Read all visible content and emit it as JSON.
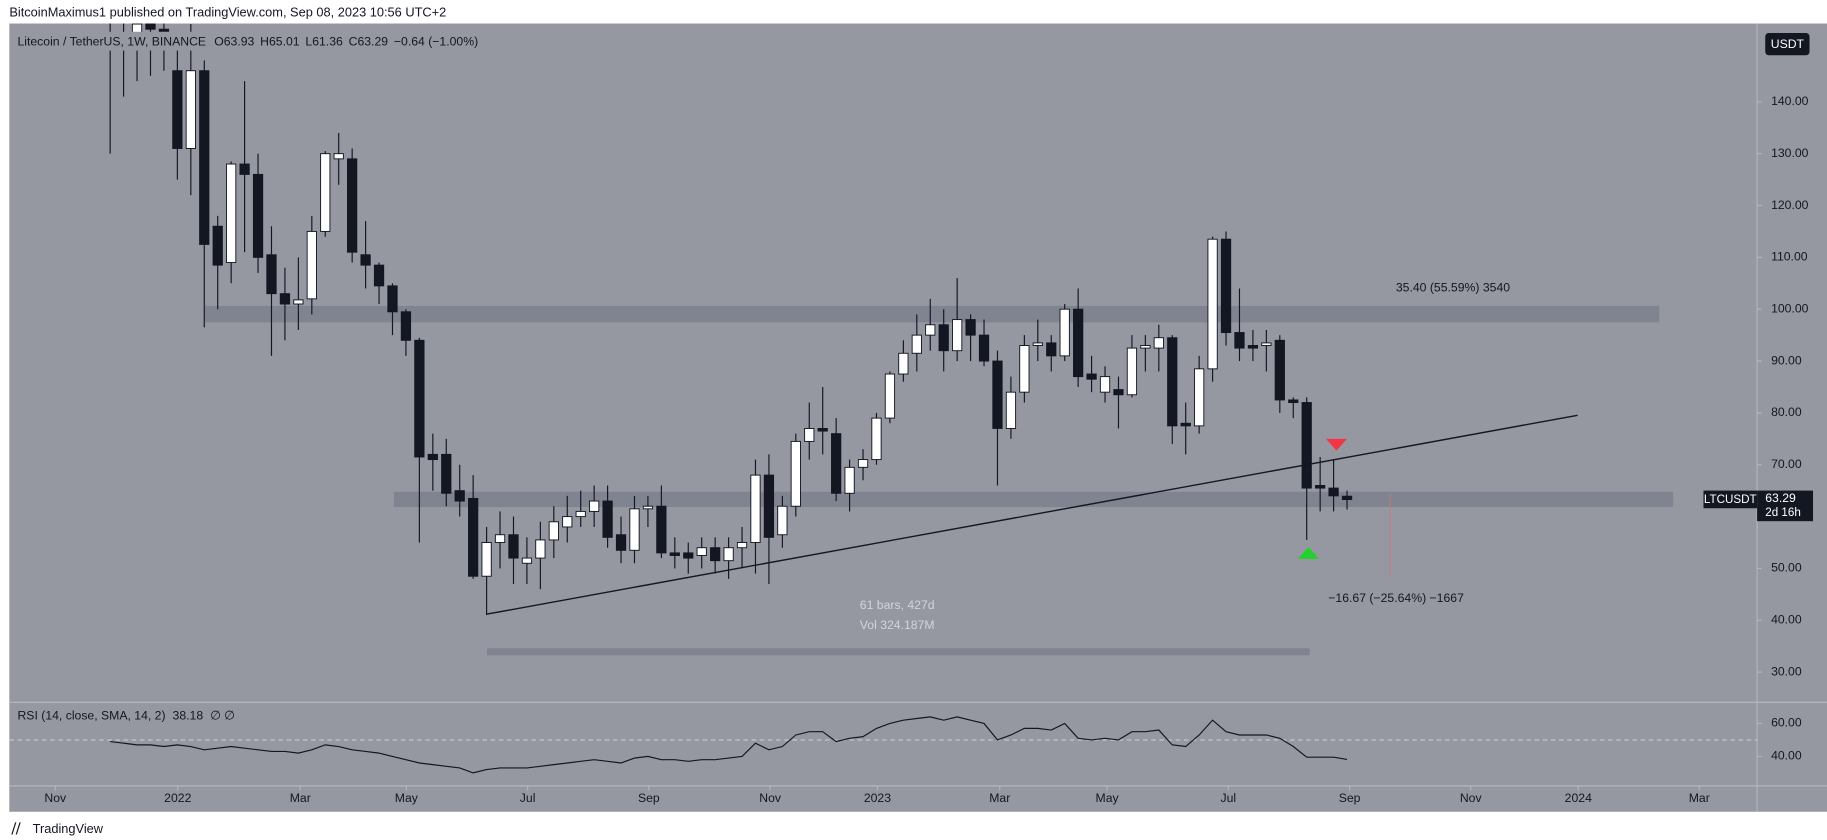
{
  "header": {
    "publisher": "BitcoinMaximus1 published on TradingView.com, Sep 08, 2023 10:56 UTC+2",
    "footer": "TradingView"
  },
  "chart_data": [
    {
      "type": "candlestick",
      "title": "Litecoin / TetherUS, 1W, BINANCE",
      "ohlc_legend": [
        {
          "key": "O",
          "value": "63.93"
        },
        {
          "key": "H",
          "value": "65.01"
        },
        {
          "key": "L",
          "value": "61.36"
        },
        {
          "key": "C",
          "value": "63.29"
        }
      ],
      "change": "−0.64 (−1.00%)",
      "currency": "USDT",
      "symbol": "LTCUSDT",
      "last_price": "63.29",
      "countdown": "2d 16h",
      "annotations": [
        "35.40 (55.59%) 3540",
        "−16.67 (−25.64%) −1667",
        "61 bars, 427d",
        "Vol 324.187M"
      ],
      "up_color": "#ffffff",
      "down_color": "#131722",
      "categories": [
        null,
        null,
        null,
        null,
        null,
        null,
        null,
        null,
        null,
        null,
        null,
        null,
        null,
        null,
        null,
        null,
        null,
        null,
        null,
        null,
        null,
        null,
        null,
        null,
        null,
        null,
        null,
        null,
        null,
        null,
        null,
        null,
        null,
        null,
        null,
        null,
        null,
        null,
        null,
        null,
        null,
        null,
        null,
        null,
        null,
        null,
        null,
        null,
        null,
        null,
        null,
        null,
        null,
        null,
        null,
        null,
        null,
        null,
        null,
        null,
        null,
        null,
        null,
        null,
        null,
        null,
        null,
        null,
        null,
        null,
        null,
        null,
        null,
        null,
        null,
        null,
        null,
        null,
        null,
        null,
        null,
        null,
        null,
        null,
        null,
        null,
        null,
        null,
        null,
        null,
        null,
        null,
        null
      ],
      "open": [
        165,
        158,
        152,
        156,
        154,
        146,
        131,
        146,
        116,
        109,
        128,
        126,
        110.5,
        103,
        101,
        102,
        115,
        129,
        129,
        110.5,
        108.5,
        104.5,
        99.5,
        94,
        72,
        72,
        65,
        63.5,
        48.5,
        55,
        56.5,
        51,
        52,
        55.5,
        58,
        60,
        61,
        63,
        56.5,
        53.5,
        61.5,
        62,
        53,
        53,
        52.5,
        54,
        51.5,
        54,
        55,
        68,
        56.5,
        62,
        74.5,
        77,
        76,
        64.5,
        69.5,
        71,
        79,
        87.5,
        91.5,
        95,
        97,
        92,
        98,
        95,
        90,
        77,
        84,
        93,
        93.5,
        91,
        100,
        87.5,
        84,
        84.5,
        83.5,
        92.5,
        92.5,
        94.5,
        78,
        77.5,
        88.5,
        113.5,
        95.5,
        93,
        93,
        94,
        82.5,
        82,
        66,
        65.5,
        63.93
      ],
      "high": [
        180,
        170,
        165,
        162,
        160,
        150,
        155,
        148,
        118,
        128.5,
        144,
        130,
        116,
        108,
        110,
        118,
        130.5,
        134,
        131,
        117,
        109,
        105,
        100,
        94.5,
        76,
        75,
        70,
        68,
        58,
        61,
        60,
        56,
        59,
        62,
        64,
        65,
        66,
        66,
        60,
        64,
        64,
        66,
        56,
        55,
        56,
        56,
        56,
        58,
        71,
        72,
        64,
        76,
        82,
        85,
        79,
        71,
        73,
        80,
        88,
        94,
        99,
        102,
        100,
        106,
        99,
        98,
        92,
        87,
        95,
        98,
        95,
        101,
        104,
        91,
        89,
        87,
        95,
        95,
        97,
        95,
        82,
        91,
        114,
        115,
        104,
        96,
        96,
        95,
        83,
        83,
        71.5,
        71,
        65.01
      ],
      "low": [
        130,
        141,
        144,
        145,
        146,
        125,
        122,
        96.5,
        100,
        105,
        111,
        107,
        91,
        94,
        96,
        99,
        114,
        124,
        109,
        104,
        101,
        95,
        91,
        55,
        65,
        62,
        60,
        48,
        41,
        50,
        47,
        47,
        46,
        52,
        55,
        58,
        58,
        54,
        51,
        51,
        58,
        52,
        50,
        49,
        50,
        49,
        48,
        50,
        49,
        47,
        54,
        60,
        71,
        72,
        63,
        61,
        67,
        70,
        78,
        86,
        88,
        92,
        88,
        90,
        90,
        89,
        66,
        75,
        82,
        90,
        88,
        90,
        85,
        84,
        82,
        77,
        83,
        88,
        88,
        74,
        72,
        76,
        86,
        93,
        90,
        90,
        88,
        80,
        79,
        55.5,
        61,
        61,
        61.36
      ],
      "close": [
        158,
        160,
        155,
        154,
        152,
        131,
        146,
        112.5,
        108.5,
        128,
        126,
        110,
        103,
        101,
        101.8,
        115,
        130,
        130,
        111,
        108.5,
        104.5,
        99.5,
        94,
        71.5,
        71,
        64.5,
        63,
        48.5,
        55,
        56.5,
        52,
        52,
        55.5,
        59,
        60,
        61,
        63,
        56,
        53.5,
        61.5,
        62,
        53,
        52.5,
        52,
        54,
        51.5,
        54,
        55,
        68,
        56,
        62,
        74.5,
        77,
        76.5,
        64.5,
        69.5,
        71,
        79,
        87.5,
        91.5,
        95,
        97,
        92,
        98,
        95,
        90,
        77,
        84,
        93,
        93.5,
        91,
        100,
        87,
        86.5,
        87,
        83.5,
        92.5,
        93,
        94.5,
        77.5,
        77.5,
        88.5,
        113.5,
        95.5,
        92.5,
        92.5,
        93.5,
        82.5,
        82,
        65.5,
        65.5,
        64,
        63.29
      ],
      "xlim": [
        -7.5,
        122.5
      ],
      "xticks": [
        {
          "value": -4.08,
          "label": "Nov"
        },
        {
          "value": 5.03,
          "label": "2022"
        },
        {
          "value": 14.14,
          "label": "Mar"
        },
        {
          "value": 22.03,
          "label": "May"
        },
        {
          "value": 31.05,
          "label": "Jul"
        },
        {
          "value": 40.07,
          "label": "Sep"
        },
        {
          "value": 49.09,
          "label": "Nov"
        },
        {
          "value": 57.07,
          "label": "2023"
        },
        {
          "value": 66.17,
          "label": "Mar"
        },
        {
          "value": 74.15,
          "label": "May"
        },
        {
          "value": 83.17,
          "label": "Jul"
        },
        {
          "value": 92.19,
          "label": "Sep"
        },
        {
          "value": 101.2,
          "label": "Nov"
        },
        {
          "value": 109.2,
          "label": "2024"
        },
        {
          "value": 118.2,
          "label": "Mar"
        }
      ],
      "ylim": [
        24.4,
        155.1
      ],
      "yticks": [
        {
          "value": 30,
          "label": "30.00"
        },
        {
          "value": 40,
          "label": "40.00"
        },
        {
          "value": 50,
          "label": "50.00"
        },
        {
          "value": 60,
          "label": "60.00"
        },
        {
          "value": 70,
          "label": "70.00"
        },
        {
          "value": 80,
          "label": "80.00"
        },
        {
          "value": 90,
          "label": "90.00"
        },
        {
          "value": 100,
          "label": "100.00"
        },
        {
          "value": 110,
          "label": "110.00"
        },
        {
          "value": 120,
          "label": "120.00"
        },
        {
          "value": 130,
          "label": "130.00"
        },
        {
          "value": 140,
          "label": "140.00"
        }
      ]
    },
    {
      "type": "line",
      "title": "RSI (14, close, SMA, 14, 2)",
      "legend_value": "38.18",
      "extra": "∅ ∅",
      "color": "#131722",
      "values": [
        49,
        48,
        47,
        47,
        46,
        47,
        46,
        44,
        45,
        46,
        45,
        44,
        43,
        43,
        42,
        44,
        47,
        46,
        44,
        43,
        42,
        40,
        38,
        36,
        35,
        34,
        33,
        30,
        32,
        33,
        33,
        33,
        34,
        35,
        36,
        37,
        38,
        37,
        36,
        39,
        40,
        38,
        38,
        37,
        38,
        38,
        39,
        40,
        48,
        44,
        46,
        53,
        55,
        55,
        49,
        51,
        52,
        57,
        60,
        62,
        63,
        64,
        62,
        64,
        62,
        60,
        50,
        53,
        57,
        57,
        56,
        60,
        51,
        50,
        51,
        50,
        55,
        55,
        56,
        47,
        46,
        53,
        62,
        55,
        53,
        53,
        53,
        51,
        46,
        39.5,
        39.5,
        39.5,
        38.18
      ],
      "ylim": [
        22.1,
        72.1
      ],
      "yticks": [
        {
          "value": 40,
          "label": "40.00"
        },
        {
          "value": 60,
          "label": "60.00"
        }
      ]
    }
  ]
}
